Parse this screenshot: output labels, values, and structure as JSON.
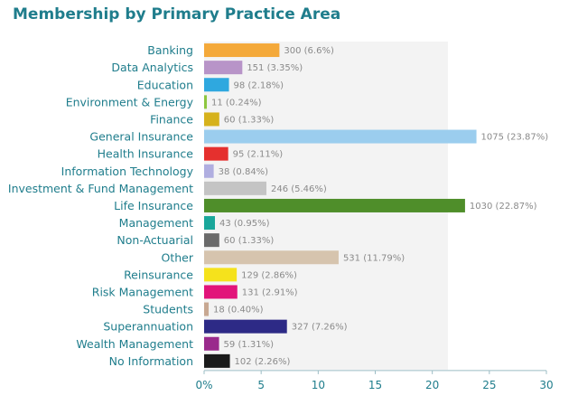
{
  "chart_data": {
    "type": "bar",
    "orientation": "horizontal",
    "title": "Membership by Primary Practice Area",
    "xlabel": "",
    "ylabel": "",
    "xlim": [
      0,
      30
    ],
    "x_ticks": [
      "0%",
      "5",
      "10",
      "15",
      "20",
      "25",
      "30"
    ],
    "grid": false,
    "categories": [
      "Banking",
      "Data Analytics",
      "Education",
      "Environment & Energy",
      "Finance",
      "General Insurance",
      "Health Insurance",
      "Information Technology",
      "Investment & Fund Management",
      "Life Insurance",
      "Management",
      "Non-Actuarial",
      "Other",
      "Reinsurance",
      "Risk Management",
      "Students",
      "Superannuation",
      "Wealth Management",
      "No Information"
    ],
    "values": [
      6.6,
      3.35,
      2.18,
      0.24,
      1.33,
      23.87,
      2.11,
      0.84,
      5.46,
      22.87,
      0.95,
      1.33,
      11.79,
      2.86,
      2.91,
      0.4,
      7.26,
      1.31,
      2.26
    ],
    "data_labels": [
      "300 (6.6%)",
      "151 (3.35%)",
      "98 (2.18%)",
      "11 (0.24%)",
      "60 (1.33%)",
      "1075 (23.87%)",
      "95 (2.11%)",
      "38 (0.84%)",
      "246 (5.46%)",
      "1030 (22.87%)",
      "43 (0.95%)",
      "60 (1.33%)",
      "531 (11.79%)",
      "129 (2.86%)",
      "131 (2.91%)",
      "18 (0.40%)",
      "327 (7.26%)",
      "59 (1.31%)",
      "102 (2.26%)"
    ],
    "colors": [
      "#f4a93a",
      "#b894c8",
      "#2fa8df",
      "#8dc63f",
      "#d6b21c",
      "#9bcdee",
      "#e5302e",
      "#b0aee0",
      "#c4c4c4",
      "#4f8e2a",
      "#1aa79b",
      "#6a6a6a",
      "#d6c4ae",
      "#f5e21c",
      "#e2137a",
      "#c8a892",
      "#2d2a86",
      "#9a2a8c",
      "#1a1a1a"
    ],
    "band_color": "#f3f3f3"
  }
}
